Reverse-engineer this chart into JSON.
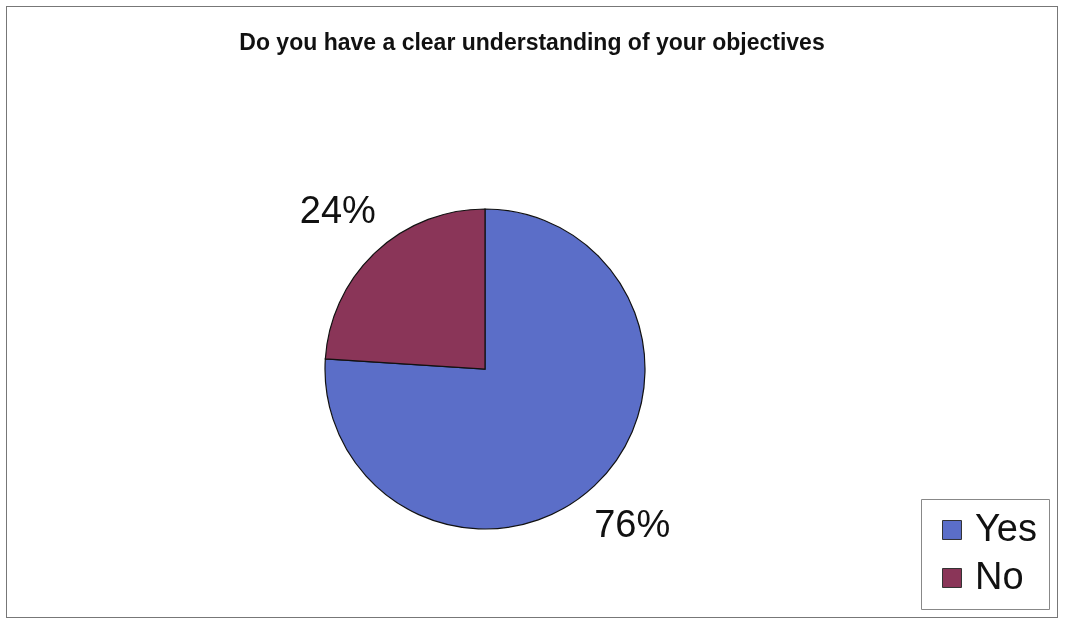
{
  "chart_data": {
    "type": "pie",
    "title": "Do you have a clear understanding of your objectives",
    "categories": [
      "Yes",
      "No"
    ],
    "values": [
      76,
      24
    ],
    "value_labels": [
      "76%",
      "24%"
    ],
    "colors": [
      "#5b6ec8",
      "#8a3558"
    ],
    "legend": "bottom right"
  }
}
